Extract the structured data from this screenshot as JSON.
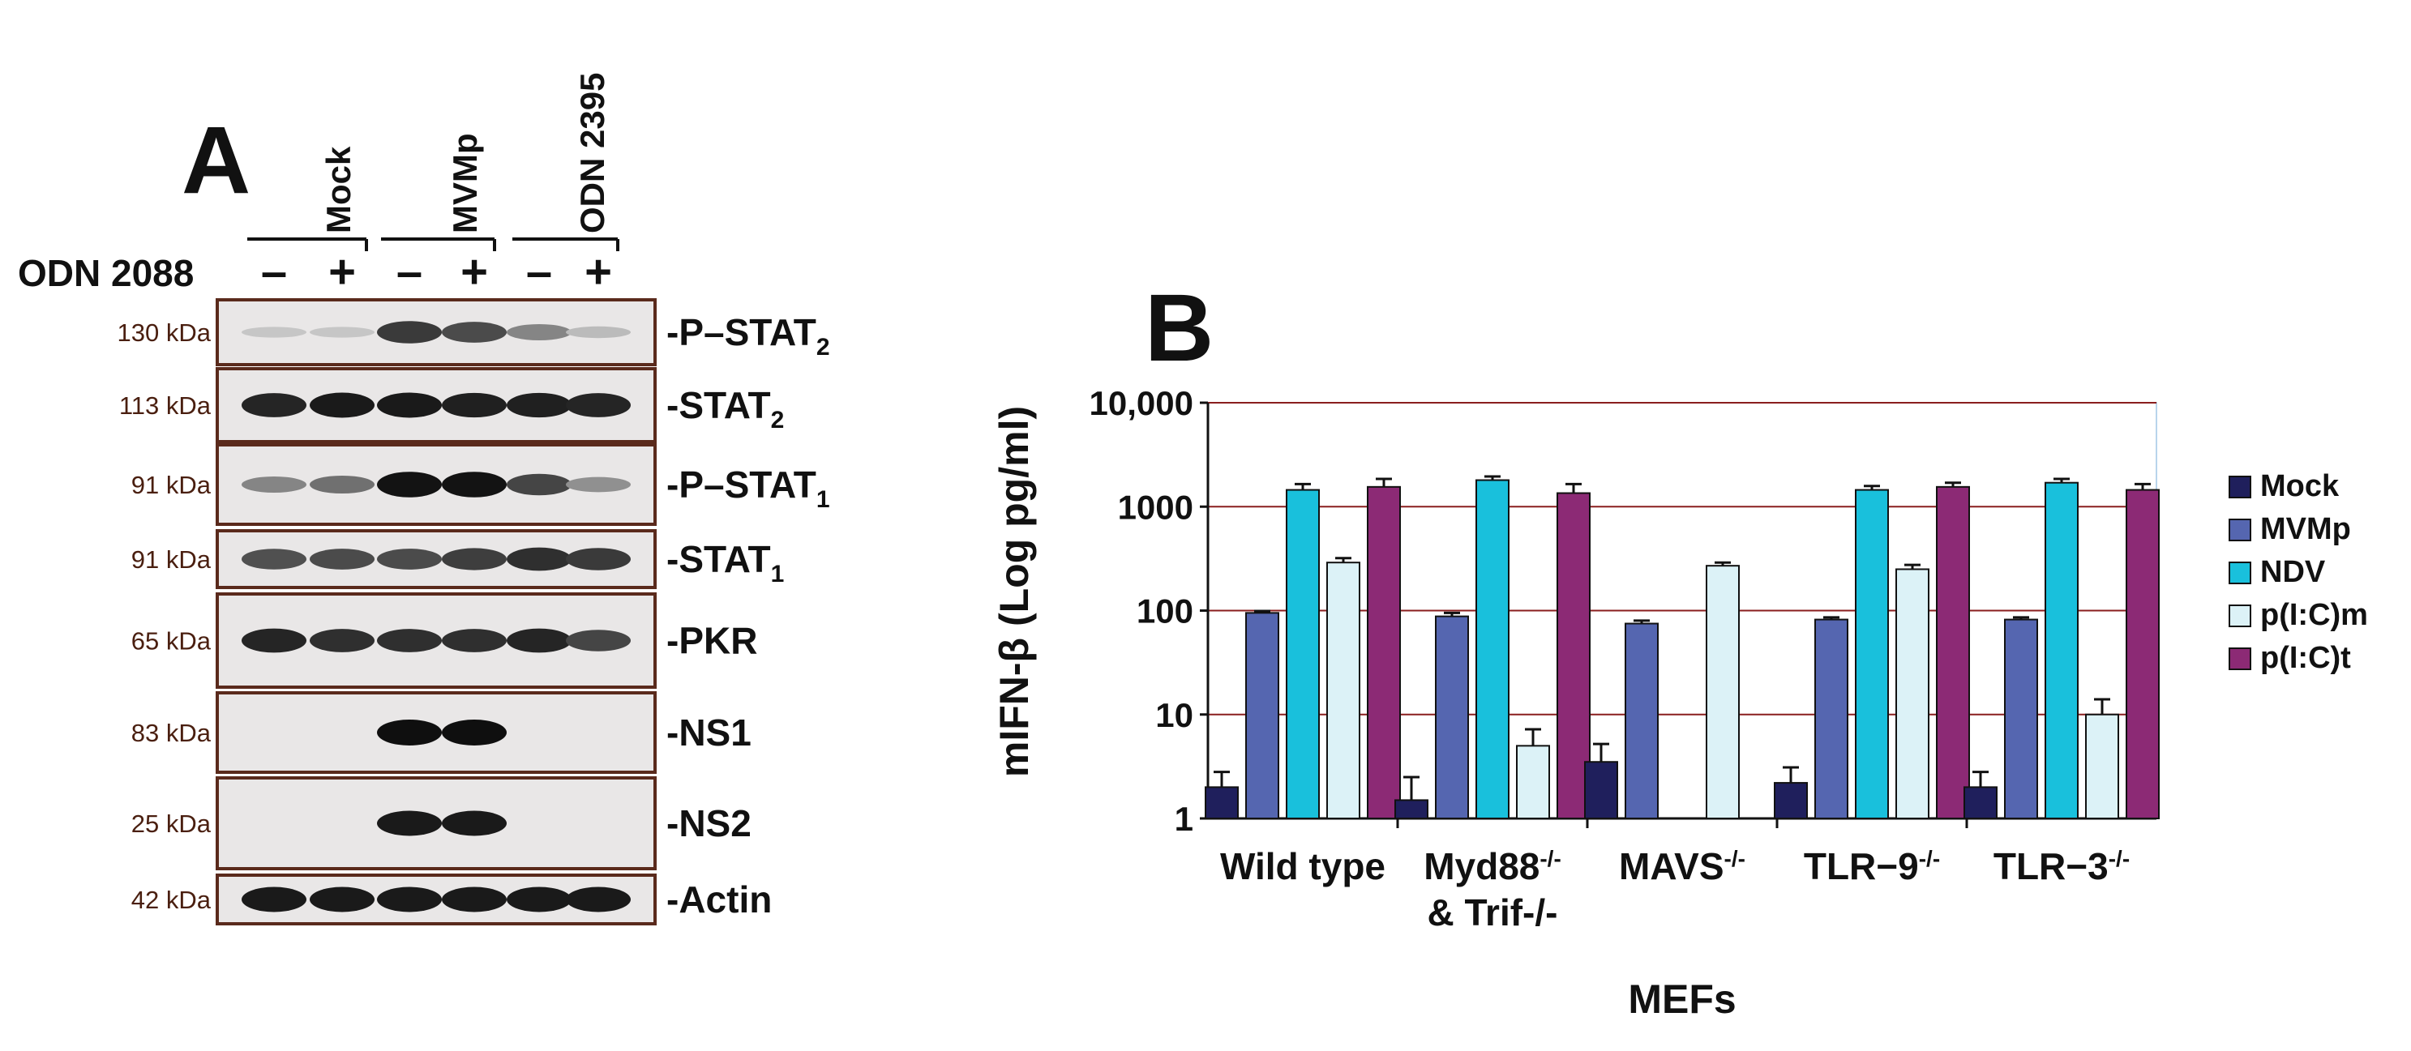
{
  "panel_a": {
    "letter": "A",
    "lane_groups": [
      "Mock",
      "MVMp",
      "ODN 2395"
    ],
    "treatment_label": "ODN 2088",
    "lane_signs": [
      "–",
      "+",
      "–",
      "+",
      "–",
      "+"
    ],
    "blots": [
      {
        "kda": "130 kDa",
        "protein": "P–STAT",
        "sub": "2",
        "bands": [
          0.15,
          0.15,
          0.8,
          0.72,
          0.45,
          0.2
        ]
      },
      {
        "kda": "113 kDa",
        "protein": "STAT",
        "sub": "2",
        "bands": [
          0.9,
          0.95,
          0.95,
          0.92,
          0.92,
          0.9
        ]
      },
      {
        "kda": "91 kDa",
        "protein": "P–STAT",
        "sub": "1",
        "bands": [
          0.45,
          0.55,
          0.98,
          0.98,
          0.75,
          0.4
        ]
      },
      {
        "kda": "91 kDa",
        "protein": "STAT",
        "sub": "1",
        "bands": [
          0.7,
          0.72,
          0.72,
          0.78,
          0.85,
          0.8
        ]
      },
      {
        "kda": "65 kDa",
        "protein": "PKR",
        "sub": "",
        "bands": [
          0.9,
          0.85,
          0.85,
          0.85,
          0.9,
          0.75
        ]
      },
      {
        "kda": "83 kDa",
        "protein": "NS1",
        "sub": "",
        "bands": [
          0,
          0,
          1,
          1,
          0,
          0
        ]
      },
      {
        "kda": "25 kDa",
        "protein": "NS2",
        "sub": "",
        "bands": [
          0,
          0,
          0.95,
          0.95,
          0,
          0
        ]
      },
      {
        "kda": "42 kDa",
        "protein": "Actin",
        "sub": "",
        "bands": [
          0.95,
          0.95,
          0.95,
          0.95,
          0.95,
          0.95
        ]
      }
    ]
  },
  "panel_b": {
    "letter": "B",
    "chart_data": {
      "type": "bar",
      "title": "",
      "ylabel": "mIFN-β (Log pg/ml)",
      "xlabel": "MEFs",
      "yscale": "log",
      "ylim": [
        1,
        10000
      ],
      "yticks": [
        "1",
        "10",
        "100",
        "1000",
        "10,000"
      ],
      "categories": [
        {
          "label": "Wild type",
          "sup": "",
          "line2": ""
        },
        {
          "label": "Myd88",
          "sup": "-/-",
          "line2": "& Trif-/-"
        },
        {
          "label": "MAVS",
          "sup": "-/-",
          "line2": ""
        },
        {
          "label": "TLR−9",
          "sup": "-/-",
          "line2": ""
        },
        {
          "label": "TLR−3",
          "sup": "-/-",
          "line2": ""
        }
      ],
      "series": [
        {
          "name": "Mock",
          "color": "#1f1f5c",
          "values": [
            2.0,
            1.5,
            3.5,
            2.2,
            2.0
          ],
          "err": [
            2.8,
            2.5,
            5.2,
            3.1,
            2.8
          ]
        },
        {
          "name": "MVMp",
          "color": "#5566b0",
          "values": [
            95,
            88,
            75,
            82,
            82
          ],
          "err": [
            99,
            95,
            80,
            86,
            86
          ]
        },
        {
          "name": "NDV",
          "color": "#19c0dc",
          "values": [
            1450,
            1800,
            null,
            1450,
            1700
          ],
          "err": [
            1650,
            1950,
            null,
            1580,
            1850
          ]
        },
        {
          "name": "p(I:C)m",
          "color": "#dcf2f7",
          "values": [
            290,
            5,
            270,
            250,
            10
          ],
          "err": [
            320,
            7.2,
            290,
            275,
            14
          ]
        },
        {
          "name": "p(I:C)t",
          "color": "#8c2a75",
          "values": [
            1550,
            1350,
            null,
            1550,
            1450
          ],
          "err": [
            1850,
            1650,
            null,
            1700,
            1650
          ]
        }
      ]
    }
  }
}
